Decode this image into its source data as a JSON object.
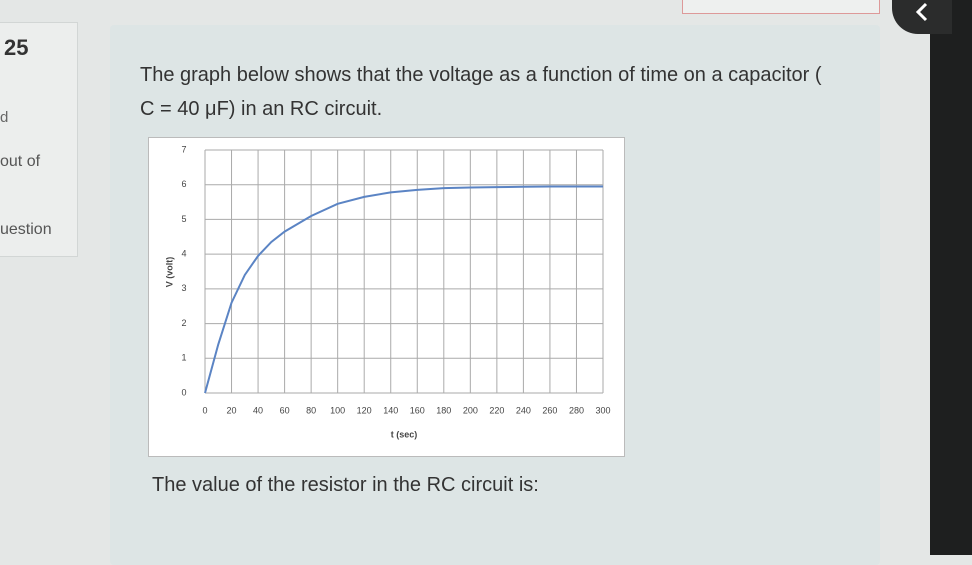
{
  "sidebar": {
    "number": "25",
    "status": "d",
    "points": "out of",
    "question": "uestion"
  },
  "question": {
    "text": "The graph below shows that the voltage as a function of time on a capacitor ( C = 40 μF) in an RC circuit.",
    "prompt": "The value of the resistor in the RC circuit is:"
  },
  "chart_data": {
    "type": "line",
    "x_label": "t (sec)",
    "y_label": "V (volt)",
    "x": [
      0,
      10,
      20,
      30,
      40,
      50,
      60,
      80,
      100,
      120,
      140,
      160,
      180,
      200,
      220,
      240,
      260,
      280,
      300
    ],
    "series": [
      {
        "name": "V",
        "color": "#5b84c4",
        "values": [
          0,
          1.4,
          2.6,
          3.4,
          3.95,
          4.35,
          4.65,
          5.1,
          5.45,
          5.65,
          5.78,
          5.85,
          5.9,
          5.92,
          5.93,
          5.94,
          5.95,
          5.95,
          5.95
        ]
      }
    ],
    "xlim": [
      0,
      300
    ],
    "xticks": [
      0,
      20,
      40,
      60,
      80,
      100,
      120,
      140,
      160,
      180,
      200,
      220,
      240,
      260,
      280,
      300
    ],
    "ylim": [
      0,
      7
    ],
    "yticks": [
      0,
      1,
      2,
      3,
      4,
      5,
      6,
      7
    ],
    "grid": true
  }
}
